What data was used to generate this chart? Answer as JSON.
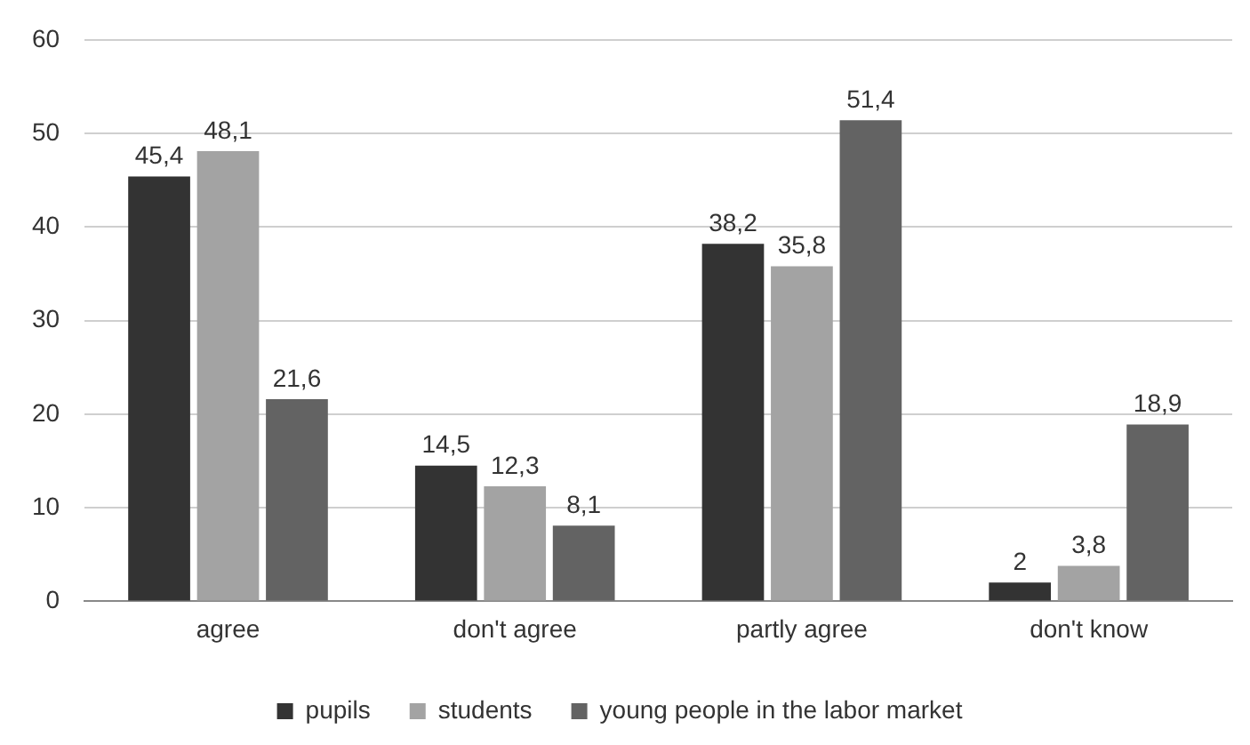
{
  "chart_data": {
    "type": "bar",
    "categories": [
      "agree",
      "don't agree",
      "partly agree",
      "don't know"
    ],
    "series": [
      {
        "name": "pupils",
        "color": "#333333",
        "values": [
          45.4,
          14.5,
          38.2,
          2
        ],
        "value_labels": [
          "45,4",
          "14,5",
          "38,2",
          "2"
        ]
      },
      {
        "name": "students",
        "color": "#a3a3a3",
        "values": [
          48.1,
          12.3,
          35.8,
          3.8
        ],
        "value_labels": [
          "48,1",
          "12,3",
          "35,8",
          "3,8"
        ]
      },
      {
        "name": "young people in the labor market",
        "color": "#636363",
        "values": [
          21.6,
          8.1,
          51.4,
          18.9
        ],
        "value_labels": [
          "21,6",
          "8,1",
          "51,4",
          "18,9"
        ]
      }
    ],
    "ylim": [
      0,
      60
    ],
    "yticks": [
      0,
      10,
      20,
      30,
      40,
      50,
      60
    ],
    "grid": "y",
    "legend": "bottom"
  }
}
